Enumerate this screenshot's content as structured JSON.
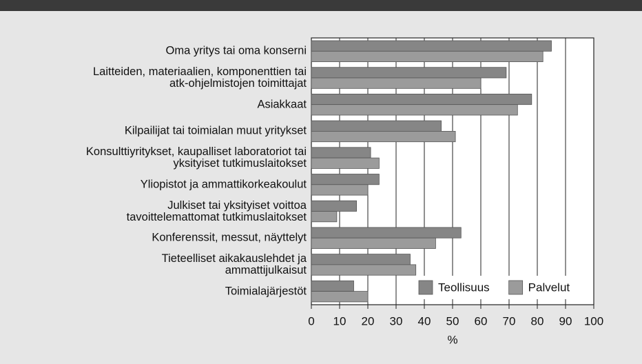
{
  "chart_data": {
    "type": "bar",
    "orientation": "horizontal",
    "categories": [
      "Oma yritys tai oma konserni",
      "Laitteiden, materiaalien, komponenttien tai\natk-ohjelmistojen toimittajat",
      "Asiakkaat",
      "Kilpailijat tai toimialan muut yritykset",
      "Konsulttiyritykset, kaupalliset laboratoriot tai\nyksityiset tutkimuslaitokset",
      "Yliopistot ja ammattikorkeakoulut",
      "Julkiset tai yksityiset voittoa\ntavoittelemattomat tutkimuslaitokset",
      "Konferenssit, messut, näyttelyt",
      "Tieteelliset aikakauslehdet ja\nammattijulkaisut",
      "Toimialajärjestöt"
    ],
    "series": [
      {
        "name": "Teollisuus",
        "color": "#868686",
        "values": [
          85,
          69,
          78,
          46,
          21,
          24,
          16,
          53,
          35,
          15
        ]
      },
      {
        "name": "Palvelut",
        "color": "#9b9b9b",
        "values": [
          82,
          60,
          73,
          51,
          24,
          20,
          9,
          44,
          37,
          20
        ]
      }
    ],
    "xlabel": "%",
    "xlim": [
      0,
      100
    ],
    "xticks": [
      0,
      10,
      20,
      30,
      40,
      50,
      60,
      70,
      80,
      90,
      100
    ],
    "grid": true,
    "legend": "lower right"
  }
}
